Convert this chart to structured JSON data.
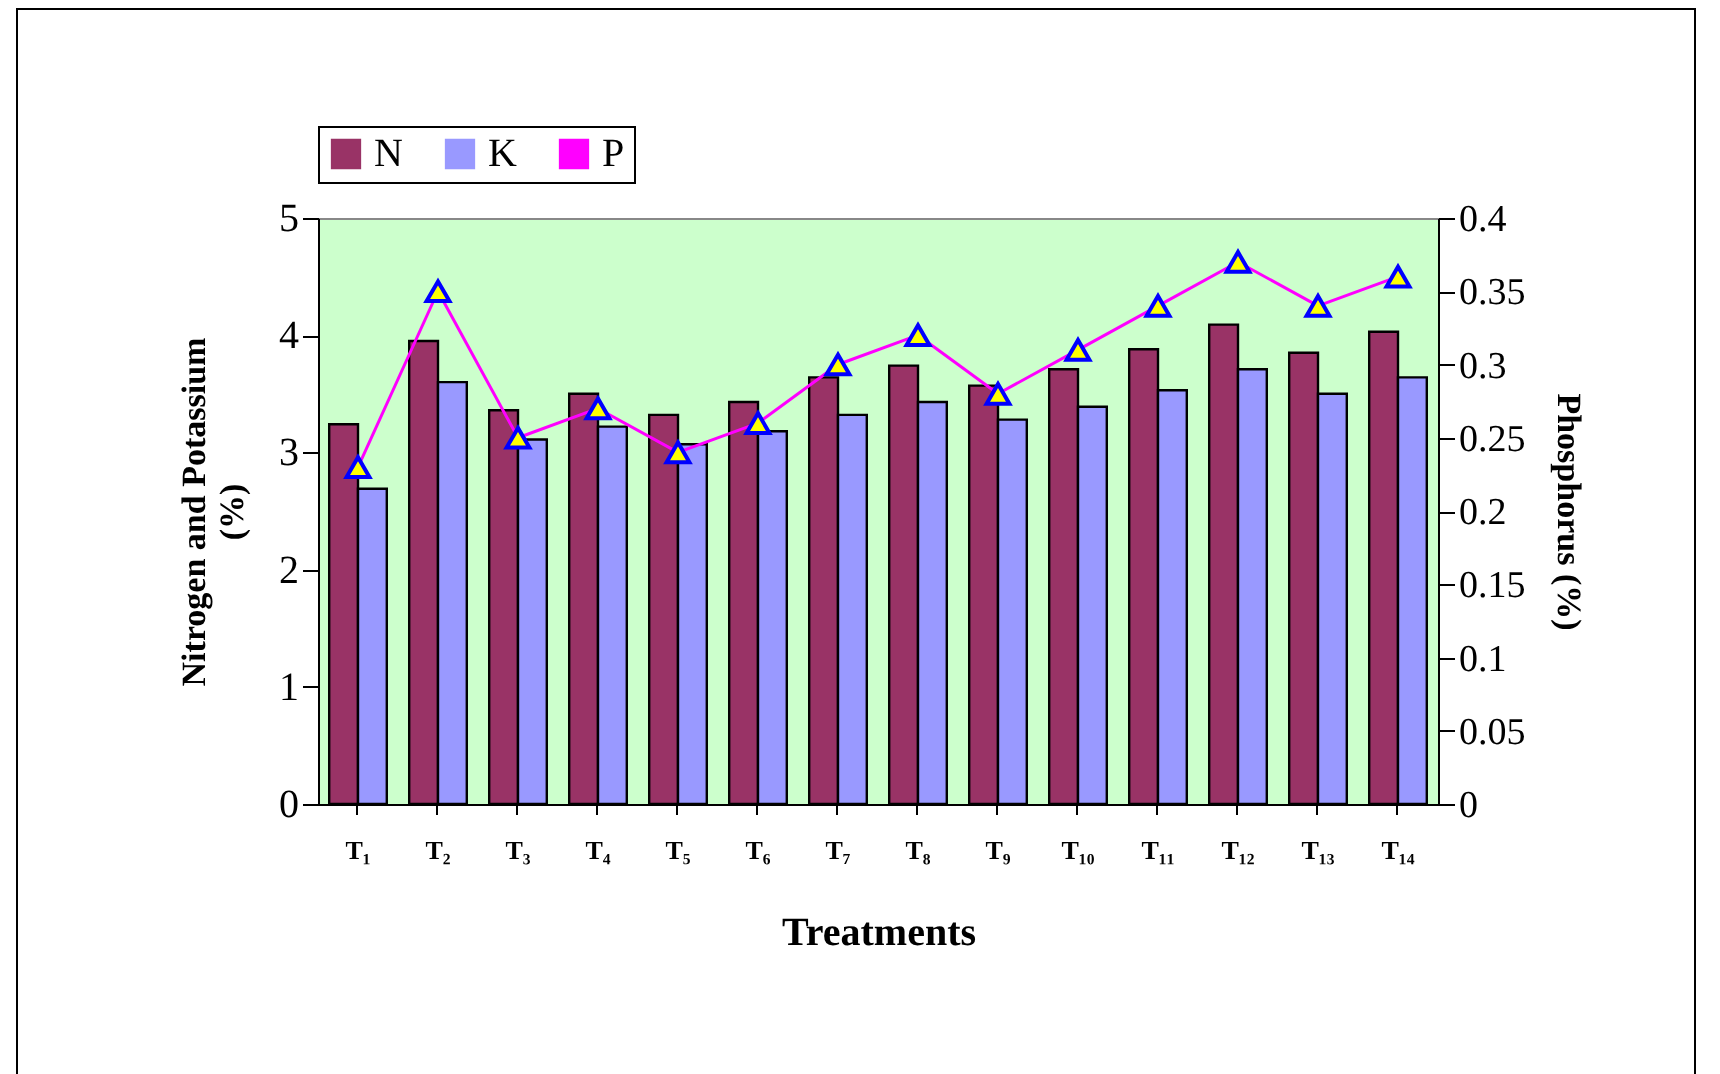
{
  "chart_data": {
    "type": "bar",
    "xlabel": "Treatments",
    "ylabel": "Nitrogen and Potassium (%)",
    "y2label": "Phosphorus (%)",
    "categories": [
      "T₁",
      "T₂",
      "T₃",
      "T₄",
      "T₅",
      "T₆",
      "T₇",
      "T₈",
      "T₉",
      "T₁₀",
      "T₁₁",
      "T₁₂",
      "T₁₃",
      "T₁₄"
    ],
    "series": [
      {
        "name": "N",
        "color": "#993366",
        "values": [
          3.24,
          3.95,
          3.36,
          3.5,
          3.32,
          3.43,
          3.64,
          3.74,
          3.57,
          3.71,
          3.88,
          4.09,
          3.85,
          4.03
        ]
      },
      {
        "name": "K",
        "color": "#9999ff",
        "values": [
          2.69,
          3.6,
          3.11,
          3.22,
          3.07,
          3.18,
          3.32,
          3.43,
          3.28,
          3.39,
          3.53,
          3.71,
          3.5,
          3.64
        ]
      },
      {
        "name": "P",
        "type": "line",
        "axis": "y2",
        "color": "#ff00ff",
        "marker": "triangle",
        "values": [
          0.23,
          0.35,
          0.25,
          0.27,
          0.24,
          0.26,
          0.3,
          0.32,
          0.28,
          0.31,
          0.34,
          0.37,
          0.34,
          0.36
        ]
      }
    ],
    "ylim": [
      0,
      5
    ],
    "yticks": [
      0,
      1,
      2,
      3,
      4,
      5
    ],
    "y2lim": [
      0,
      0.4
    ],
    "y2ticks": [
      0,
      0.05,
      0.1,
      0.15,
      0.2,
      0.25,
      0.3,
      0.35,
      0.4
    ],
    "grid": false,
    "legend": "top"
  }
}
